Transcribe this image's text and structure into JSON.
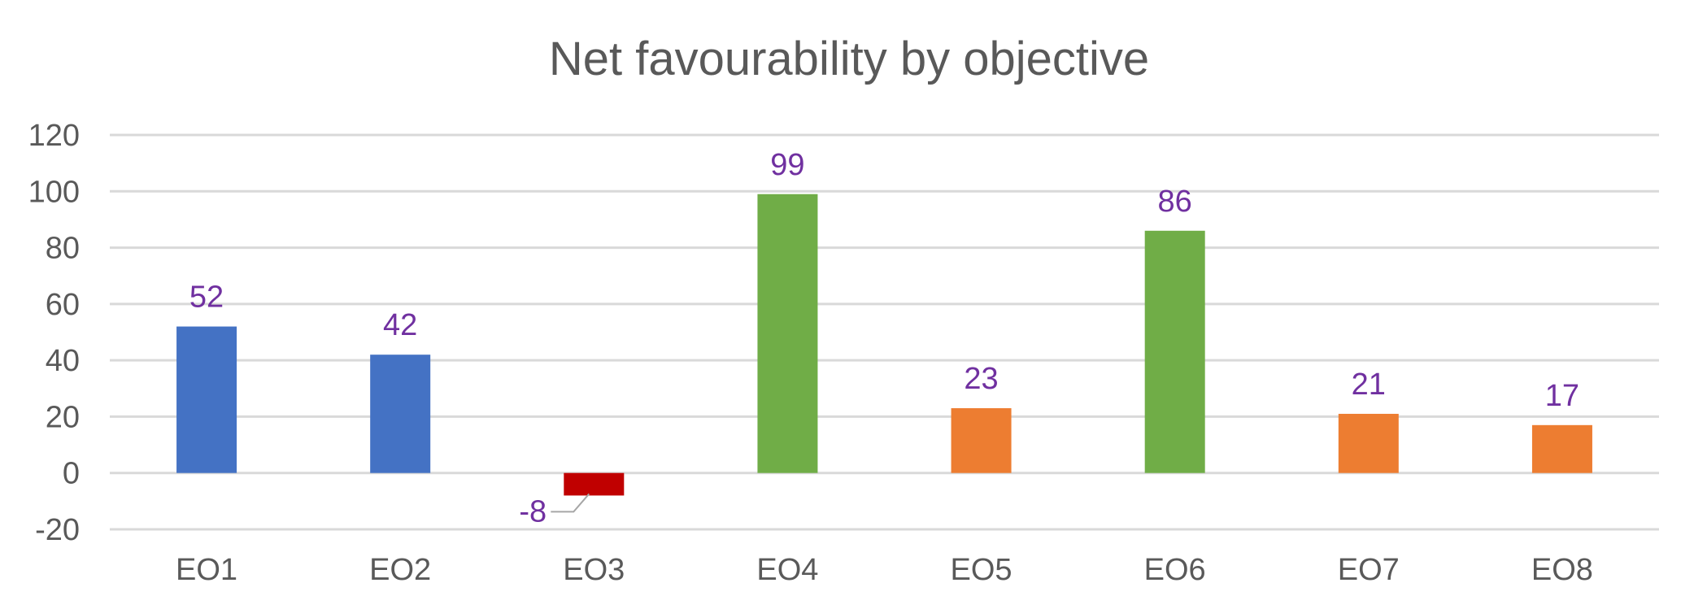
{
  "chart_data": {
    "type": "bar",
    "title": "Net favourability by objective",
    "xlabel": "",
    "ylabel": "",
    "categories": [
      "EO1",
      "EO2",
      "EO3",
      "EO4",
      "EO5",
      "EO6",
      "EO7",
      "EO8"
    ],
    "values": [
      52,
      42,
      -8,
      99,
      23,
      86,
      21,
      17
    ],
    "bar_colors": [
      "#4472c4",
      "#4472c4",
      "#c00000",
      "#70ad47",
      "#ed7d31",
      "#70ad47",
      "#ed7d31",
      "#ed7d31"
    ],
    "ylim": [
      -20,
      120
    ],
    "yticks": [
      120,
      100,
      80,
      60,
      40,
      20,
      0,
      -20
    ],
    "ytick_labels": [
      "120",
      "100",
      "80",
      "60",
      "40",
      "20",
      "0",
      "-20"
    ],
    "data_labels": [
      "52",
      "42",
      "-8",
      "99",
      "23",
      "86",
      "21",
      "17"
    ],
    "data_label_color": "#7030a0",
    "grid": true,
    "legend": "none"
  }
}
